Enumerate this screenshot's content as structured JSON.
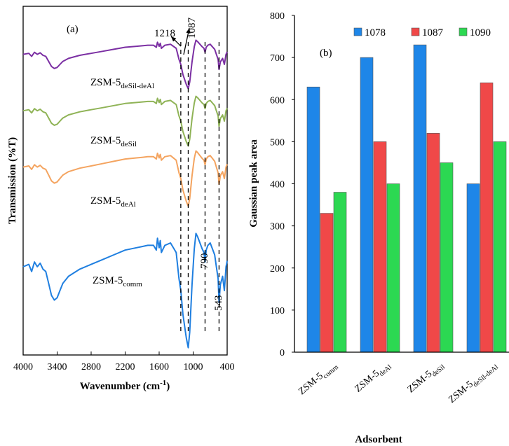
{
  "chart_data": [
    {
      "type": "line",
      "panel_label": "(a)",
      "xlabel": "Wavenumber (cm",
      "xlabel_sup": "-1",
      "xlabel_tail": ")",
      "ylabel": "Transmission (%T)",
      "xlim": [
        4000,
        400
      ],
      "x_ticks": [
        "4000",
        "3400",
        "2800",
        "2200",
        "1600",
        "1000",
        "400"
      ],
      "series": [
        {
          "name": "ZSM-5",
          "sub": "deSil-deAl",
          "color": "#7b2fa3"
        },
        {
          "name": "ZSM-5",
          "sub": "deSil",
          "color": "#8fb356"
        },
        {
          "name": "ZSM-5",
          "sub": "deAl",
          "color": "#f4a460"
        },
        {
          "name": "ZSM-5",
          "sub": "comm",
          "color": "#1f7fe0"
        }
      ],
      "annotations": [
        {
          "text": "1218",
          "x": 1218
        },
        {
          "text": "1087",
          "x": 1087
        },
        {
          "text": "790",
          "x": 790
        },
        {
          "text": "543",
          "x": 543
        }
      ]
    },
    {
      "type": "bar",
      "panel_label": "(b)",
      "xlabel": "Adsorbent",
      "ylabel": "Gaussian peak area",
      "ylim": [
        0,
        800
      ],
      "y_ticks": [
        "0",
        "100",
        "200",
        "300",
        "400",
        "500",
        "600",
        "700",
        "800"
      ],
      "legend_position": "top",
      "categories": [
        {
          "name": "ZSM-5",
          "sub": "comm"
        },
        {
          "name": "ZSM-5",
          "sub": "deAl"
        },
        {
          "name": "ZSM-5",
          "sub": "deSil"
        },
        {
          "name": "ZSM-5",
          "sub": "deSil-deAl"
        }
      ],
      "series": [
        {
          "name": "1078",
          "color": "#1e86e8",
          "values": [
            630,
            700,
            730,
            400
          ]
        },
        {
          "name": "1087",
          "color": "#f04848",
          "values": [
            330,
            500,
            520,
            640
          ]
        },
        {
          "name": "1090",
          "color": "#2cd852",
          "values": [
            380,
            400,
            450,
            500
          ]
        }
      ]
    }
  ]
}
